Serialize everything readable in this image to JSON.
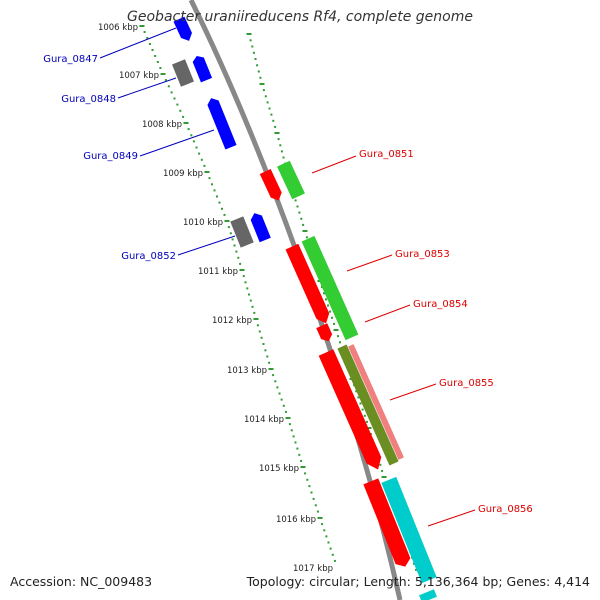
{
  "title": "Geobacter uraniireducens Rf4, complete genome",
  "accession": "Accession: NC_009483",
  "topology": "Topology: circular; Length: 5,136,364 bp; Genes: 4,414",
  "colors": {
    "backbone": "#888888",
    "scale_ticks": "#339933",
    "forward_gene": "#0000ff",
    "reverse_gene": "#ff0000",
    "other_gene": "#666666",
    "label_left": "#0000bb",
    "label_right": "#dd0000",
    "rna_green": "#33cc33",
    "olive": "#6b8e23",
    "pink": "#f08080",
    "cyan": "#00cccc"
  },
  "scale_labels": [
    "1006 kbp",
    "1007 kbp",
    "1008 kbp",
    "1009 kbp",
    "1010 kbp",
    "1011 kbp",
    "1012 kbp",
    "1013 kbp",
    "1014 kbp",
    "1015 kbp",
    "1016 kbp",
    "1017 kbp"
  ],
  "left_gene_labels": [
    "Gura_0847",
    "Gura_0848",
    "Gura_0849",
    "Gura_0852"
  ],
  "right_gene_labels": [
    "Gura_0851",
    "Gura_0853",
    "Gura_0854",
    "Gura_0855",
    "Gura_0856"
  ]
}
